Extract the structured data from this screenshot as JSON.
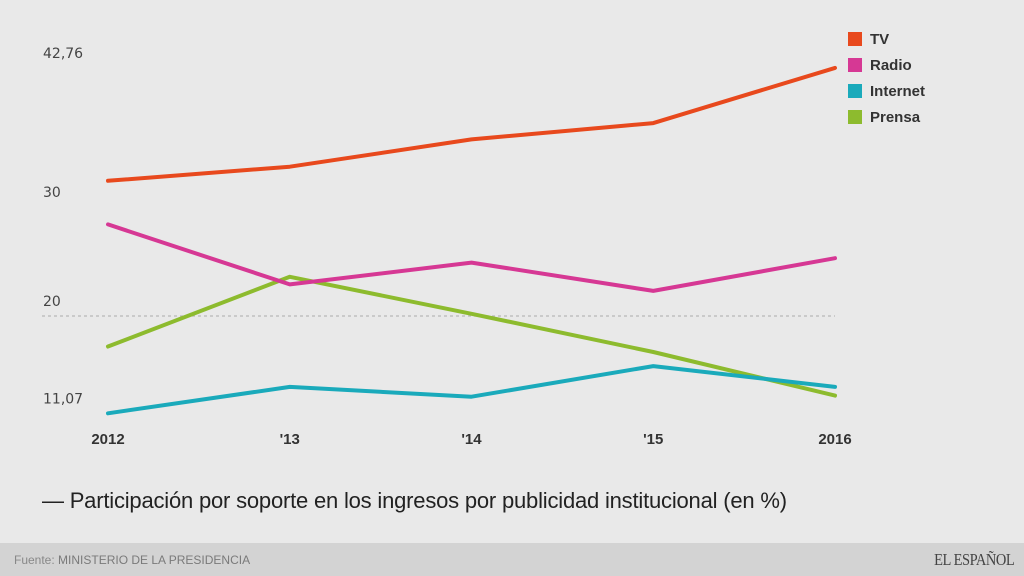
{
  "chart_data": {
    "type": "line",
    "title": "— Participación por soporte en los ingresos por publicidad institucional (en %)",
    "xlabel": "",
    "ylabel": "",
    "categories": [
      "2012",
      "'13",
      "'14",
      "'15",
      "2016"
    ],
    "y_ticks": [
      {
        "value": 42.76,
        "label": "42,76"
      },
      {
        "value": 30,
        "label": "30"
      },
      {
        "value": 20,
        "label": "20"
      },
      {
        "value": 11.07,
        "label": "11,07"
      }
    ],
    "reference_line": 20,
    "ylim": [
      10,
      44
    ],
    "grid": false,
    "legend_position": "top-right",
    "series": [
      {
        "name": "TV",
        "color": "#e8491d",
        "values": [
          32.4,
          33.7,
          36.2,
          37.7,
          42.76
        ]
      },
      {
        "name": "Radio",
        "color": "#d63894",
        "values": [
          28.4,
          22.9,
          24.9,
          22.3,
          25.3
        ]
      },
      {
        "name": "Internet",
        "color": "#1aaabb",
        "values": [
          11.07,
          13.5,
          12.6,
          15.4,
          13.5
        ]
      },
      {
        "name": "Prensa",
        "color": "#8dbb2e",
        "values": [
          17.2,
          23.6,
          20.2,
          16.7,
          12.7
        ]
      }
    ]
  },
  "footer": {
    "source_prefix": "Fuente:",
    "source_text": "MINISTERIO DE LA PRESIDENCIA",
    "brand": "EL ESPAÑOL"
  }
}
